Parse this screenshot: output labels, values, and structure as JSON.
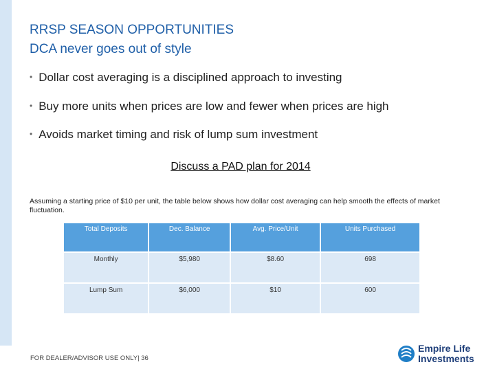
{
  "header": {
    "title": "RRSP SEASON OPPORTUNITIES",
    "subtitle": "DCA never goes out of style"
  },
  "bullets": [
    "Dollar cost averaging is a disciplined approach to investing",
    "Buy more units when prices are low and fewer when prices are high",
    "Avoids market timing and risk of lump sum investment"
  ],
  "callout": "Discuss a PAD plan for 2014",
  "note": "Assuming a starting price of $10 per unit,  the table below shows how dollar cost averaging can help smooth the effects of market fluctuation.",
  "table": {
    "columns": [
      "Total Deposits",
      "Dec. Balance",
      "Avg. Price/Unit",
      "Units Purchased"
    ],
    "rows": [
      [
        "Monthly",
        "$5,980",
        "$8.60",
        "698"
      ],
      [
        "Lump Sum",
        "$6,000",
        "$10",
        "600"
      ]
    ]
  },
  "footer": "FOR DEALER/ADVISOR USE ONLY| 36",
  "logo": {
    "line1": "Empire Life",
    "line2": "Investments"
  }
}
